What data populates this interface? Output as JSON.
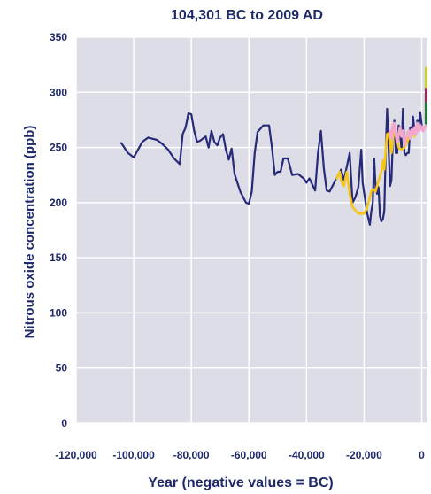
{
  "chart_data": {
    "type": "line",
    "title": "104,301 BC to 2009 AD",
    "xlabel": "Year (negative values = BC)",
    "ylabel": "Nitrous oxide concentration (ppb)",
    "xlim": [
      -120000,
      2000
    ],
    "ylim": [
      0,
      350
    ],
    "xticks": [
      -120000,
      -100000,
      -80000,
      -60000,
      -40000,
      -20000,
      0
    ],
    "xtick_labels": [
      "-120,000",
      "-100,000",
      "-80,000",
      "-60,000",
      "-40,000",
      "-20,000",
      "0"
    ],
    "yticks": [
      0,
      50,
      100,
      150,
      200,
      250,
      300,
      350
    ],
    "ytick_labels": [
      "0",
      "50",
      "100",
      "150",
      "200",
      "250",
      "300",
      "350"
    ],
    "grid": true,
    "legend": false,
    "series": [
      {
        "color": "#262a78",
        "x": [
          -104300,
          -102000,
          -100000,
          -97000,
          -95000,
          -92000,
          -90000,
          -88000,
          -86000,
          -84000,
          -83000,
          -82000,
          -81000,
          -80000,
          -79000,
          -78000,
          -77000,
          -76000,
          -75000,
          -74000,
          -73000,
          -72000,
          -71000,
          -70000,
          -69000,
          -68000,
          -67000,
          -66000,
          -65000,
          -63000,
          -61000,
          -60000,
          -59000,
          -58000,
          -57000,
          -55000,
          -53000,
          -52000,
          -51000,
          -50000,
          -49000,
          -48000,
          -46500,
          -45000,
          -43000,
          -41000,
          -40000,
          -39000,
          -37000,
          -36000,
          -35000,
          -34000,
          -33000,
          -32000,
          -30000,
          -28000,
          -27000,
          -25000,
          -24000,
          -23000,
          -22000,
          -21000,
          -20500,
          -19000,
          -18000,
          -17500,
          -17000,
          -16500,
          -16000,
          -15500,
          -15000,
          -14500,
          -14000,
          -13500,
          -13000,
          -12500,
          -12000,
          -11000,
          -10500,
          -10000,
          -9500,
          -9000,
          -8500,
          -8000,
          -7500,
          -7000,
          -6500,
          -6000,
          -5500,
          -5000,
          -4500,
          -4000,
          -3500,
          -3000,
          -2500,
          -2000,
          -1500,
          -1000,
          -500,
          0
        ],
        "y": [
          254,
          245,
          241,
          255,
          259,
          257,
          253,
          248,
          240,
          235,
          262,
          268,
          281,
          280,
          265,
          255,
          256,
          258,
          260,
          250,
          265,
          255,
          252,
          259,
          262,
          248,
          239,
          249,
          226,
          210,
          200,
          199,
          210,
          245,
          264,
          270,
          270,
          250,
          225,
          228,
          228,
          240,
          240,
          225,
          226,
          222,
          218,
          222,
          211,
          245,
          265,
          231,
          211,
          210,
          220,
          230,
          220,
          245,
          200,
          205,
          214,
          248,
          218,
          191,
          180,
          192,
          200,
          240,
          214,
          208,
          214,
          188,
          183,
          185,
          192,
          245,
          285,
          215,
          220,
          260,
          275,
          245,
          245,
          270,
          262,
          248,
          285,
          245,
          243,
          245,
          245,
          268,
          262,
          278,
          265,
          263,
          275,
          270,
          282,
          270
        ]
      },
      {
        "color": "#f5c518",
        "x": [
          -29500,
          -28500,
          -28000,
          -27000,
          -26500,
          -26000,
          -25000,
          -24000,
          -23000,
          -22000,
          -21000,
          -20000,
          -19000,
          -18000,
          -17500,
          -17000,
          -16000,
          -15000,
          -14000,
          -13500,
          -13000,
          -12500,
          -12000,
          -11500,
          -11000,
          -10500,
          -10000,
          -9500,
          -9000,
          -8500,
          -8000,
          -7000,
          -6000,
          -5000,
          -4000,
          -3000,
          -2500
        ],
        "y": [
          222,
          228,
          220,
          215,
          222,
          228,
          208,
          196,
          193,
          190,
          190,
          190,
          195,
          205,
          210,
          212,
          210,
          220,
          228,
          238,
          230,
          248,
          262,
          263,
          255,
          245,
          258,
          265,
          262,
          260,
          250,
          248,
          250,
          255,
          262,
          262,
          260
        ]
      },
      {
        "color": "#f2a8cc",
        "x": [
          -11000,
          -10500,
          -10000,
          -9500,
          -9000,
          -8500,
          -8000,
          -7500,
          -7000,
          -6500,
          -6000,
          -5500,
          -5000,
          -4500,
          -4000,
          -3500,
          -3000,
          -2500,
          -2000,
          -1500,
          -1000,
          -500,
          0,
          500,
          1000,
          1500
        ],
        "y": [
          265,
          258,
          270,
          272,
          262,
          255,
          262,
          268,
          260,
          265,
          252,
          258,
          262,
          265,
          258,
          266,
          262,
          268,
          262,
          272,
          265,
          270,
          267,
          265,
          268,
          270
        ]
      },
      {
        "color": "#9a2a55",
        "x": [
          1500,
          1500,
          1500
        ],
        "y": [
          290,
          298,
          305
        ]
      },
      {
        "color": "#c8cf32",
        "x": [
          1500,
          1500,
          1500
        ],
        "y": [
          305,
          312,
          322
        ]
      },
      {
        "color": "#1f7a3a",
        "x": [
          1500,
          1500,
          1500
        ],
        "y": [
          272,
          280,
          290
        ]
      }
    ]
  }
}
